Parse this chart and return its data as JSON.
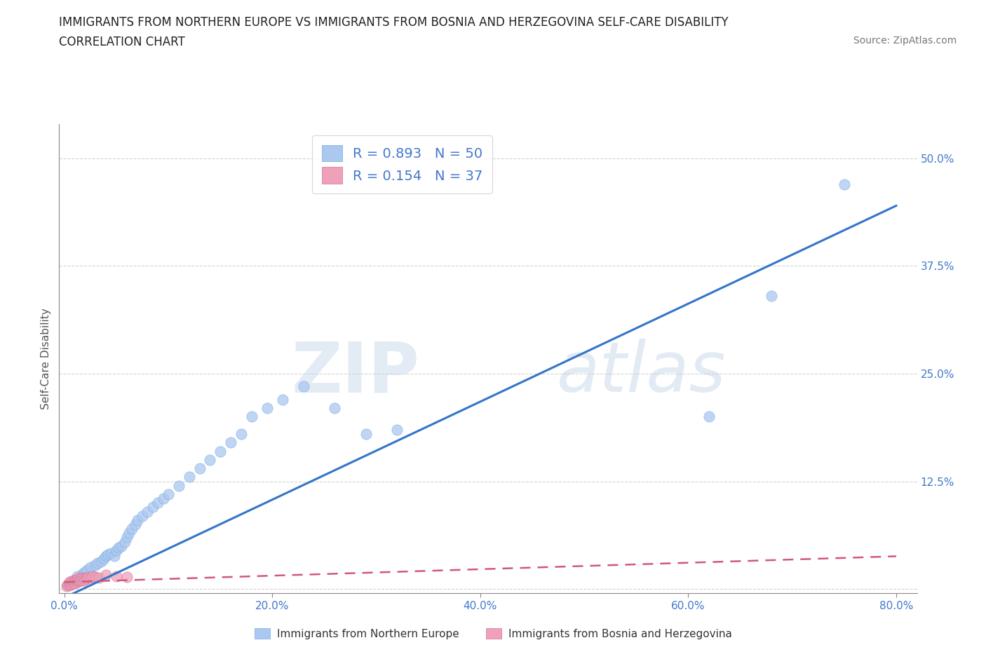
{
  "title_line1": "IMMIGRANTS FROM NORTHERN EUROPE VS IMMIGRANTS FROM BOSNIA AND HERZEGOVINA SELF-CARE DISABILITY",
  "title_line2": "CORRELATION CHART",
  "source": "Source: ZipAtlas.com",
  "ylabel": "Self-Care Disability",
  "xlim": [
    -0.005,
    0.82
  ],
  "ylim": [
    -0.005,
    0.54
  ],
  "x_ticks": [
    0.0,
    0.2,
    0.4,
    0.6,
    0.8
  ],
  "x_tick_labels": [
    "0.0%",
    "20.0%",
    "40.0%",
    "60.0%",
    "80.0%"
  ],
  "y_ticks": [
    0.0,
    0.125,
    0.25,
    0.375,
    0.5
  ],
  "y_tick_labels": [
    "",
    "12.5%",
    "25.0%",
    "37.5%",
    "50.0%"
  ],
  "watermark_zip": "ZIP",
  "watermark_atlas": "atlas",
  "legend_text1": "R = 0.893   N = 50",
  "legend_text2": "R = 0.154   N = 37",
  "color_blue": "#aac8f0",
  "color_pink": "#f0a0b8",
  "line_blue": "#3375c8",
  "line_pink": "#d05878",
  "legend_label1": "Immigrants from Northern Europe",
  "legend_label2": "Immigrants from Bosnia and Herzegovina",
  "blue_scatter_x": [
    0.005,
    0.008,
    0.01,
    0.012,
    0.015,
    0.018,
    0.02,
    0.022,
    0.025,
    0.028,
    0.03,
    0.032,
    0.035,
    0.038,
    0.04,
    0.042,
    0.045,
    0.048,
    0.05,
    0.052,
    0.055,
    0.058,
    0.06,
    0.062,
    0.065,
    0.068,
    0.07,
    0.075,
    0.08,
    0.085,
    0.09,
    0.095,
    0.1,
    0.11,
    0.12,
    0.13,
    0.14,
    0.15,
    0.16,
    0.17,
    0.18,
    0.195,
    0.21,
    0.23,
    0.26,
    0.29,
    0.32,
    0.62,
    0.68,
    0.75
  ],
  "blue_scatter_y": [
    0.005,
    0.008,
    0.01,
    0.015,
    0.012,
    0.018,
    0.02,
    0.022,
    0.025,
    0.015,
    0.028,
    0.03,
    0.032,
    0.035,
    0.038,
    0.04,
    0.042,
    0.038,
    0.045,
    0.048,
    0.05,
    0.055,
    0.06,
    0.065,
    0.07,
    0.075,
    0.08,
    0.085,
    0.09,
    0.095,
    0.1,
    0.105,
    0.11,
    0.12,
    0.13,
    0.14,
    0.15,
    0.16,
    0.17,
    0.18,
    0.2,
    0.21,
    0.22,
    0.235,
    0.21,
    0.18,
    0.185,
    0.2,
    0.34,
    0.47
  ],
  "pink_scatter_x": [
    0.002,
    0.003,
    0.004,
    0.005,
    0.005,
    0.006,
    0.007,
    0.007,
    0.008,
    0.008,
    0.009,
    0.01,
    0.01,
    0.011,
    0.012,
    0.012,
    0.013,
    0.013,
    0.014,
    0.015,
    0.015,
    0.016,
    0.017,
    0.018,
    0.018,
    0.019,
    0.02,
    0.021,
    0.022,
    0.023,
    0.025,
    0.027,
    0.03,
    0.033,
    0.04,
    0.05,
    0.06
  ],
  "pink_scatter_y": [
    0.003,
    0.005,
    0.004,
    0.006,
    0.008,
    0.005,
    0.006,
    0.009,
    0.007,
    0.01,
    0.008,
    0.007,
    0.01,
    0.009,
    0.008,
    0.011,
    0.01,
    0.012,
    0.009,
    0.01,
    0.013,
    0.011,
    0.012,
    0.01,
    0.013,
    0.012,
    0.011,
    0.013,
    0.012,
    0.014,
    0.013,
    0.015,
    0.014,
    0.013,
    0.016,
    0.015,
    0.014
  ],
  "blue_line_x": [
    0.0,
    0.8
  ],
  "blue_line_y": [
    -0.01,
    0.445
  ],
  "pink_line_x": [
    0.0,
    0.8
  ],
  "pink_line_y": [
    0.008,
    0.038
  ],
  "grid_color": "#c8c8c8",
  "background_color": "#ffffff",
  "title_color": "#222222",
  "axis_label_color": "#555555",
  "tick_color": "#4477cc",
  "title_fontsize": 12,
  "subtitle_fontsize": 12,
  "legend_fontsize": 14,
  "axis_fontsize": 11,
  "source_fontsize": 10
}
